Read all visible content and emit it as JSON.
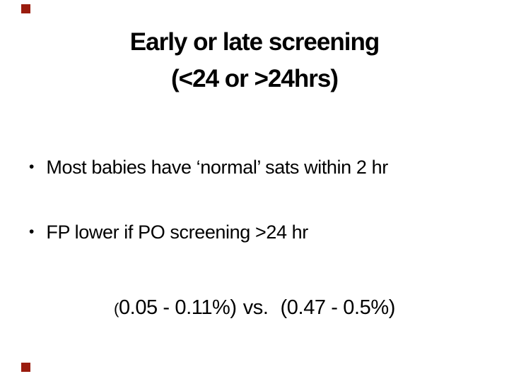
{
  "slide": {
    "background_color": "#ffffff",
    "text_color": "#000000",
    "accent_square_color": "#9a1c0e",
    "title": {
      "line1": "Early or late screening",
      "line2": "(<24 or >24hrs)"
    },
    "bullets": [
      {
        "marker": "•",
        "text": "Most babies have ‘normal’ sats within 2 hr"
      },
      {
        "marker": "•",
        "text": "FP lower if PO screening >24 hr"
      }
    ],
    "stats": {
      "open_paren": "(",
      "range_early": "0.05 - 0.11%)",
      "separator": "vs.",
      "range_late": "(0.47 - 0.5%)"
    }
  }
}
